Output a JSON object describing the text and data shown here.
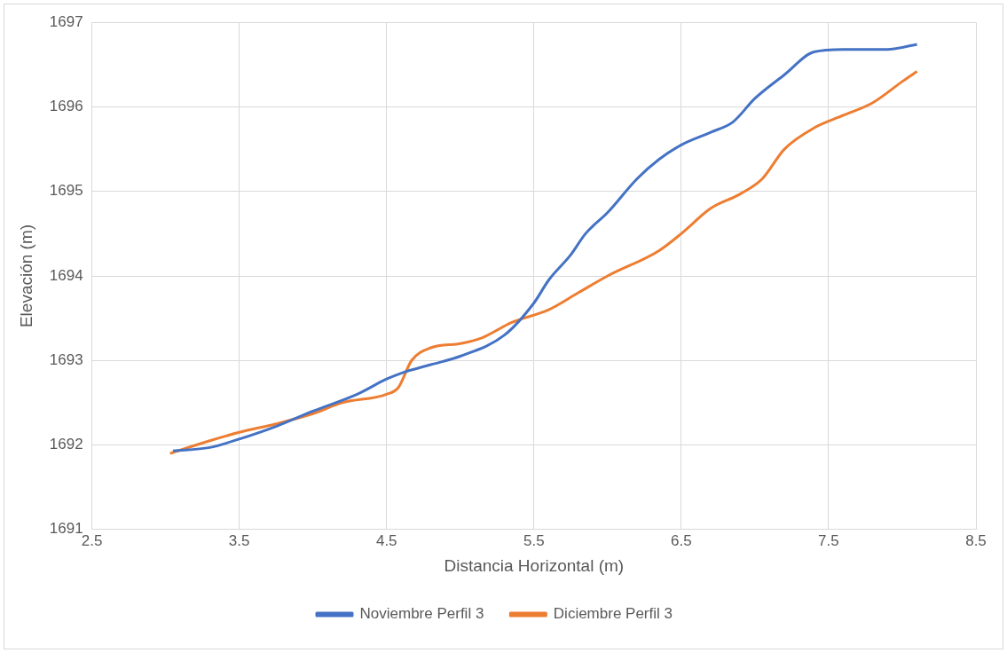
{
  "chart_data": {
    "type": "line",
    "xlabel": "Distancia Horizontal (m)",
    "ylabel": "Elevación (m)",
    "xlim": [
      2.5,
      8.5
    ],
    "xticks": [
      2.5,
      3.5,
      4.5,
      5.5,
      6.5,
      7.5,
      8.5
    ],
    "ylim": [
      1691,
      1697
    ],
    "yticks": [
      1691,
      1692,
      1693,
      1694,
      1695,
      1696,
      1697
    ],
    "grid": true,
    "legend": "bottom",
    "marker": "none",
    "series": [
      {
        "name": "Noviembre Perfil 3",
        "color": "#4472c4",
        "x": [
          3.05,
          3.3,
          3.5,
          3.75,
          4.0,
          4.3,
          4.5,
          4.6,
          4.8,
          5.0,
          5.3,
          5.5,
          5.6,
          5.75,
          5.85,
          6.0,
          6.2,
          6.35,
          6.5,
          6.7,
          6.85,
          7.0,
          7.2,
          7.4,
          7.6,
          7.9,
          8.1
        ],
        "values": [
          1691.93,
          1691.97,
          1692.07,
          1692.22,
          1692.4,
          1692.6,
          1692.78,
          1692.85,
          1692.95,
          1693.05,
          1693.3,
          1693.68,
          1693.95,
          1694.25,
          1694.5,
          1694.75,
          1695.15,
          1695.38,
          1695.55,
          1695.7,
          1695.82,
          1696.1,
          1696.38,
          1696.65,
          1696.68,
          1696.68,
          1696.74
        ]
      },
      {
        "name": "Diciembre Perfil 3",
        "color": "#ed7d31",
        "x": [
          3.03,
          3.3,
          3.5,
          3.75,
          4.0,
          4.2,
          4.5,
          4.58,
          4.67,
          4.8,
          5.0,
          5.15,
          5.35,
          5.6,
          5.8,
          6.0,
          6.35,
          6.5,
          6.7,
          6.9,
          7.05,
          7.2,
          7.4,
          7.6,
          7.8,
          8.0,
          8.1
        ],
        "values": [
          1691.9,
          1692.05,
          1692.15,
          1692.25,
          1692.37,
          1692.5,
          1692.6,
          1692.68,
          1693.0,
          1693.15,
          1693.2,
          1693.27,
          1693.45,
          1693.6,
          1693.8,
          1694.0,
          1694.3,
          1694.5,
          1694.8,
          1694.97,
          1695.15,
          1695.5,
          1695.75,
          1695.9,
          1696.05,
          1696.3,
          1696.42
        ]
      }
    ]
  }
}
